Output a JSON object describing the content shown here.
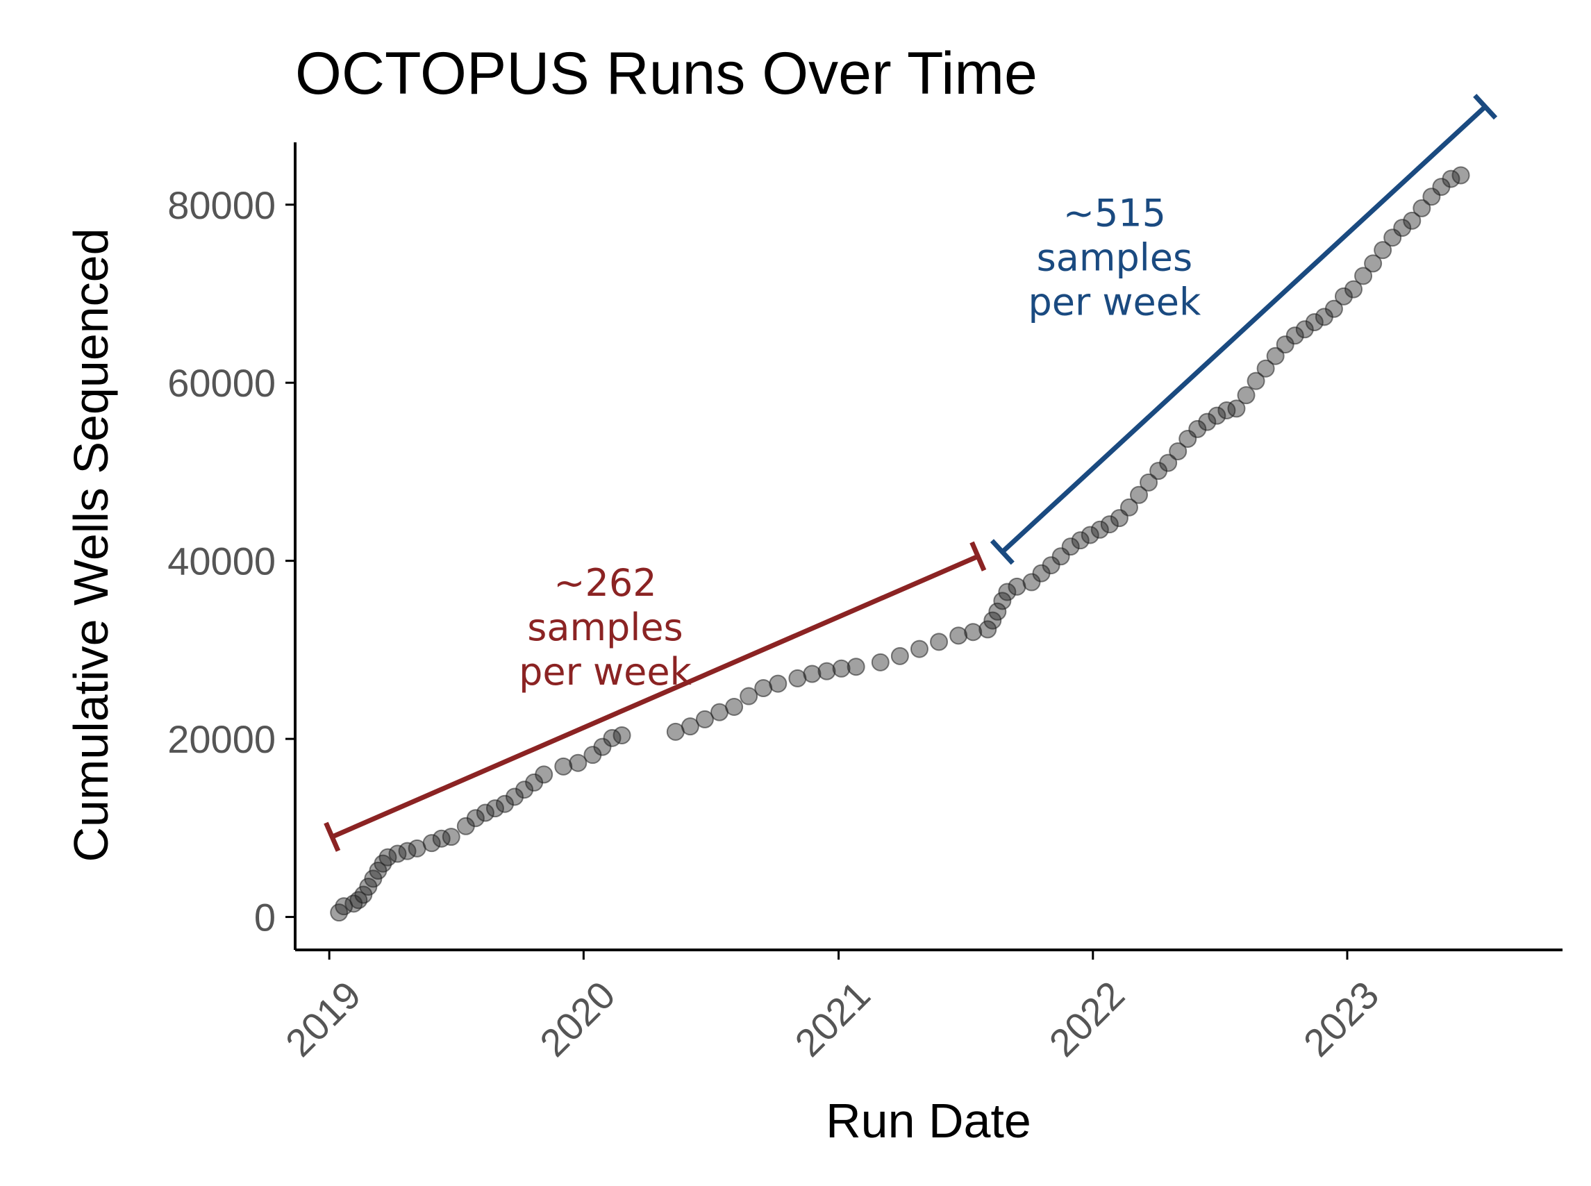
{
  "chart_data": {
    "type": "scatter",
    "title": "OCTOPUS Runs Over Time",
    "xlabel": "Run Date",
    "ylabel": "Cumulative Wells Sequenced",
    "x_ticks": [
      "2019",
      "2020",
      "2021",
      "2022",
      "2023"
    ],
    "y_ticks": [
      "0",
      "20000",
      "40000",
      "60000",
      "80000"
    ],
    "xlim": [
      "2018-11-13",
      "2023-11-06"
    ],
    "ylim": [
      -3700,
      87000
    ],
    "grid": false,
    "legend": "none",
    "point_color": "#1f1f1f",
    "series": [
      {
        "points": [
          [
            "2019-01-15",
            500
          ],
          [
            "2019-01-22",
            1200
          ],
          [
            "2019-02-05",
            1500
          ],
          [
            "2019-02-12",
            1900
          ],
          [
            "2019-02-19",
            2500
          ],
          [
            "2019-02-26",
            3400
          ],
          [
            "2019-03-05",
            4300
          ],
          [
            "2019-03-12",
            5200
          ],
          [
            "2019-03-19",
            6000
          ],
          [
            "2019-03-26",
            6700
          ],
          [
            "2019-04-09",
            7100
          ],
          [
            "2019-04-23",
            7400
          ],
          [
            "2019-05-07",
            7700
          ],
          [
            "2019-05-28",
            8300
          ],
          [
            "2019-06-11",
            8800
          ],
          [
            "2019-06-25",
            9000
          ],
          [
            "2019-07-16",
            10200
          ],
          [
            "2019-07-30",
            11100
          ],
          [
            "2019-08-13",
            11700
          ],
          [
            "2019-08-27",
            12200
          ],
          [
            "2019-09-10",
            12700
          ],
          [
            "2019-09-24",
            13500
          ],
          [
            "2019-10-08",
            14300
          ],
          [
            "2019-10-22",
            15100
          ],
          [
            "2019-11-05",
            16000
          ],
          [
            "2019-12-03",
            16900
          ],
          [
            "2019-12-24",
            17300
          ],
          [
            "2020-01-14",
            18200
          ],
          [
            "2020-01-28",
            19100
          ],
          [
            "2020-02-11",
            20100
          ],
          [
            "2020-02-25",
            20400
          ],
          [
            "2020-05-12",
            20800
          ],
          [
            "2020-06-02",
            21400
          ],
          [
            "2020-06-23",
            22200
          ],
          [
            "2020-07-14",
            23000
          ],
          [
            "2020-08-04",
            23600
          ],
          [
            "2020-08-25",
            24800
          ],
          [
            "2020-09-15",
            25700
          ],
          [
            "2020-10-06",
            26200
          ],
          [
            "2020-11-03",
            26800
          ],
          [
            "2020-11-24",
            27300
          ],
          [
            "2020-12-15",
            27600
          ],
          [
            "2021-01-05",
            27900
          ],
          [
            "2021-01-26",
            28100
          ],
          [
            "2021-03-02",
            28600
          ],
          [
            "2021-03-30",
            29300
          ],
          [
            "2021-04-27",
            30100
          ],
          [
            "2021-05-25",
            30900
          ],
          [
            "2021-06-22",
            31600
          ],
          [
            "2021-07-13",
            32000
          ],
          [
            "2021-08-03",
            32300
          ],
          [
            "2021-08-10",
            33300
          ],
          [
            "2021-08-17",
            34300
          ],
          [
            "2021-08-24",
            35500
          ],
          [
            "2021-08-31",
            36500
          ],
          [
            "2021-09-14",
            37100
          ],
          [
            "2021-10-05",
            37600
          ],
          [
            "2021-10-19",
            38600
          ],
          [
            "2021-11-02",
            39500
          ],
          [
            "2021-11-16",
            40500
          ],
          [
            "2021-11-30",
            41600
          ],
          [
            "2021-12-14",
            42300
          ],
          [
            "2021-12-28",
            42900
          ],
          [
            "2022-01-11",
            43500
          ],
          [
            "2022-01-25",
            44100
          ],
          [
            "2022-02-08",
            44800
          ],
          [
            "2022-02-22",
            46000
          ],
          [
            "2022-03-08",
            47400
          ],
          [
            "2022-03-22",
            48800
          ],
          [
            "2022-04-05",
            50100
          ],
          [
            "2022-04-19",
            51000
          ],
          [
            "2022-05-03",
            52300
          ],
          [
            "2022-05-17",
            53700
          ],
          [
            "2022-05-31",
            54800
          ],
          [
            "2022-06-14",
            55600
          ],
          [
            "2022-06-28",
            56300
          ],
          [
            "2022-07-12",
            56900
          ],
          [
            "2022-07-26",
            57100
          ],
          [
            "2022-08-09",
            58600
          ],
          [
            "2022-08-23",
            60200
          ],
          [
            "2022-09-06",
            61600
          ],
          [
            "2022-09-20",
            63000
          ],
          [
            "2022-10-04",
            64300
          ],
          [
            "2022-10-18",
            65300
          ],
          [
            "2022-11-01",
            66000
          ],
          [
            "2022-11-15",
            66800
          ],
          [
            "2022-11-29",
            67400
          ],
          [
            "2022-12-13",
            68300
          ],
          [
            "2022-12-27",
            69700
          ],
          [
            "2023-01-10",
            70500
          ],
          [
            "2023-01-24",
            72000
          ],
          [
            "2023-02-07",
            73400
          ],
          [
            "2023-02-21",
            74900
          ],
          [
            "2023-03-07",
            76300
          ],
          [
            "2023-03-21",
            77400
          ],
          [
            "2023-04-04",
            78200
          ],
          [
            "2023-04-18",
            79600
          ],
          [
            "2023-05-02",
            80900
          ],
          [
            "2023-05-16",
            82000
          ],
          [
            "2023-05-30",
            82900
          ],
          [
            "2023-06-13",
            83300
          ]
        ]
      }
    ],
    "annotations": [
      {
        "lines": [
          "~262",
          "samples",
          "per week"
        ],
        "color": "#8b2323",
        "bracket_from": [
          "2019-01-05",
          9000
        ],
        "bracket_to": [
          "2021-07-20",
          40500
        ],
        "text_at": [
          "2020-02-01",
          32500
        ]
      },
      {
        "lines": [
          "~515",
          "samples",
          "per week"
        ],
        "color": "#1a4a80",
        "bracket_from": [
          "2021-08-24",
          41000
        ],
        "bracket_to": [
          "2023-07-18",
          91000
        ],
        "text_at": [
          "2022-02-01",
          74000
        ]
      }
    ]
  }
}
